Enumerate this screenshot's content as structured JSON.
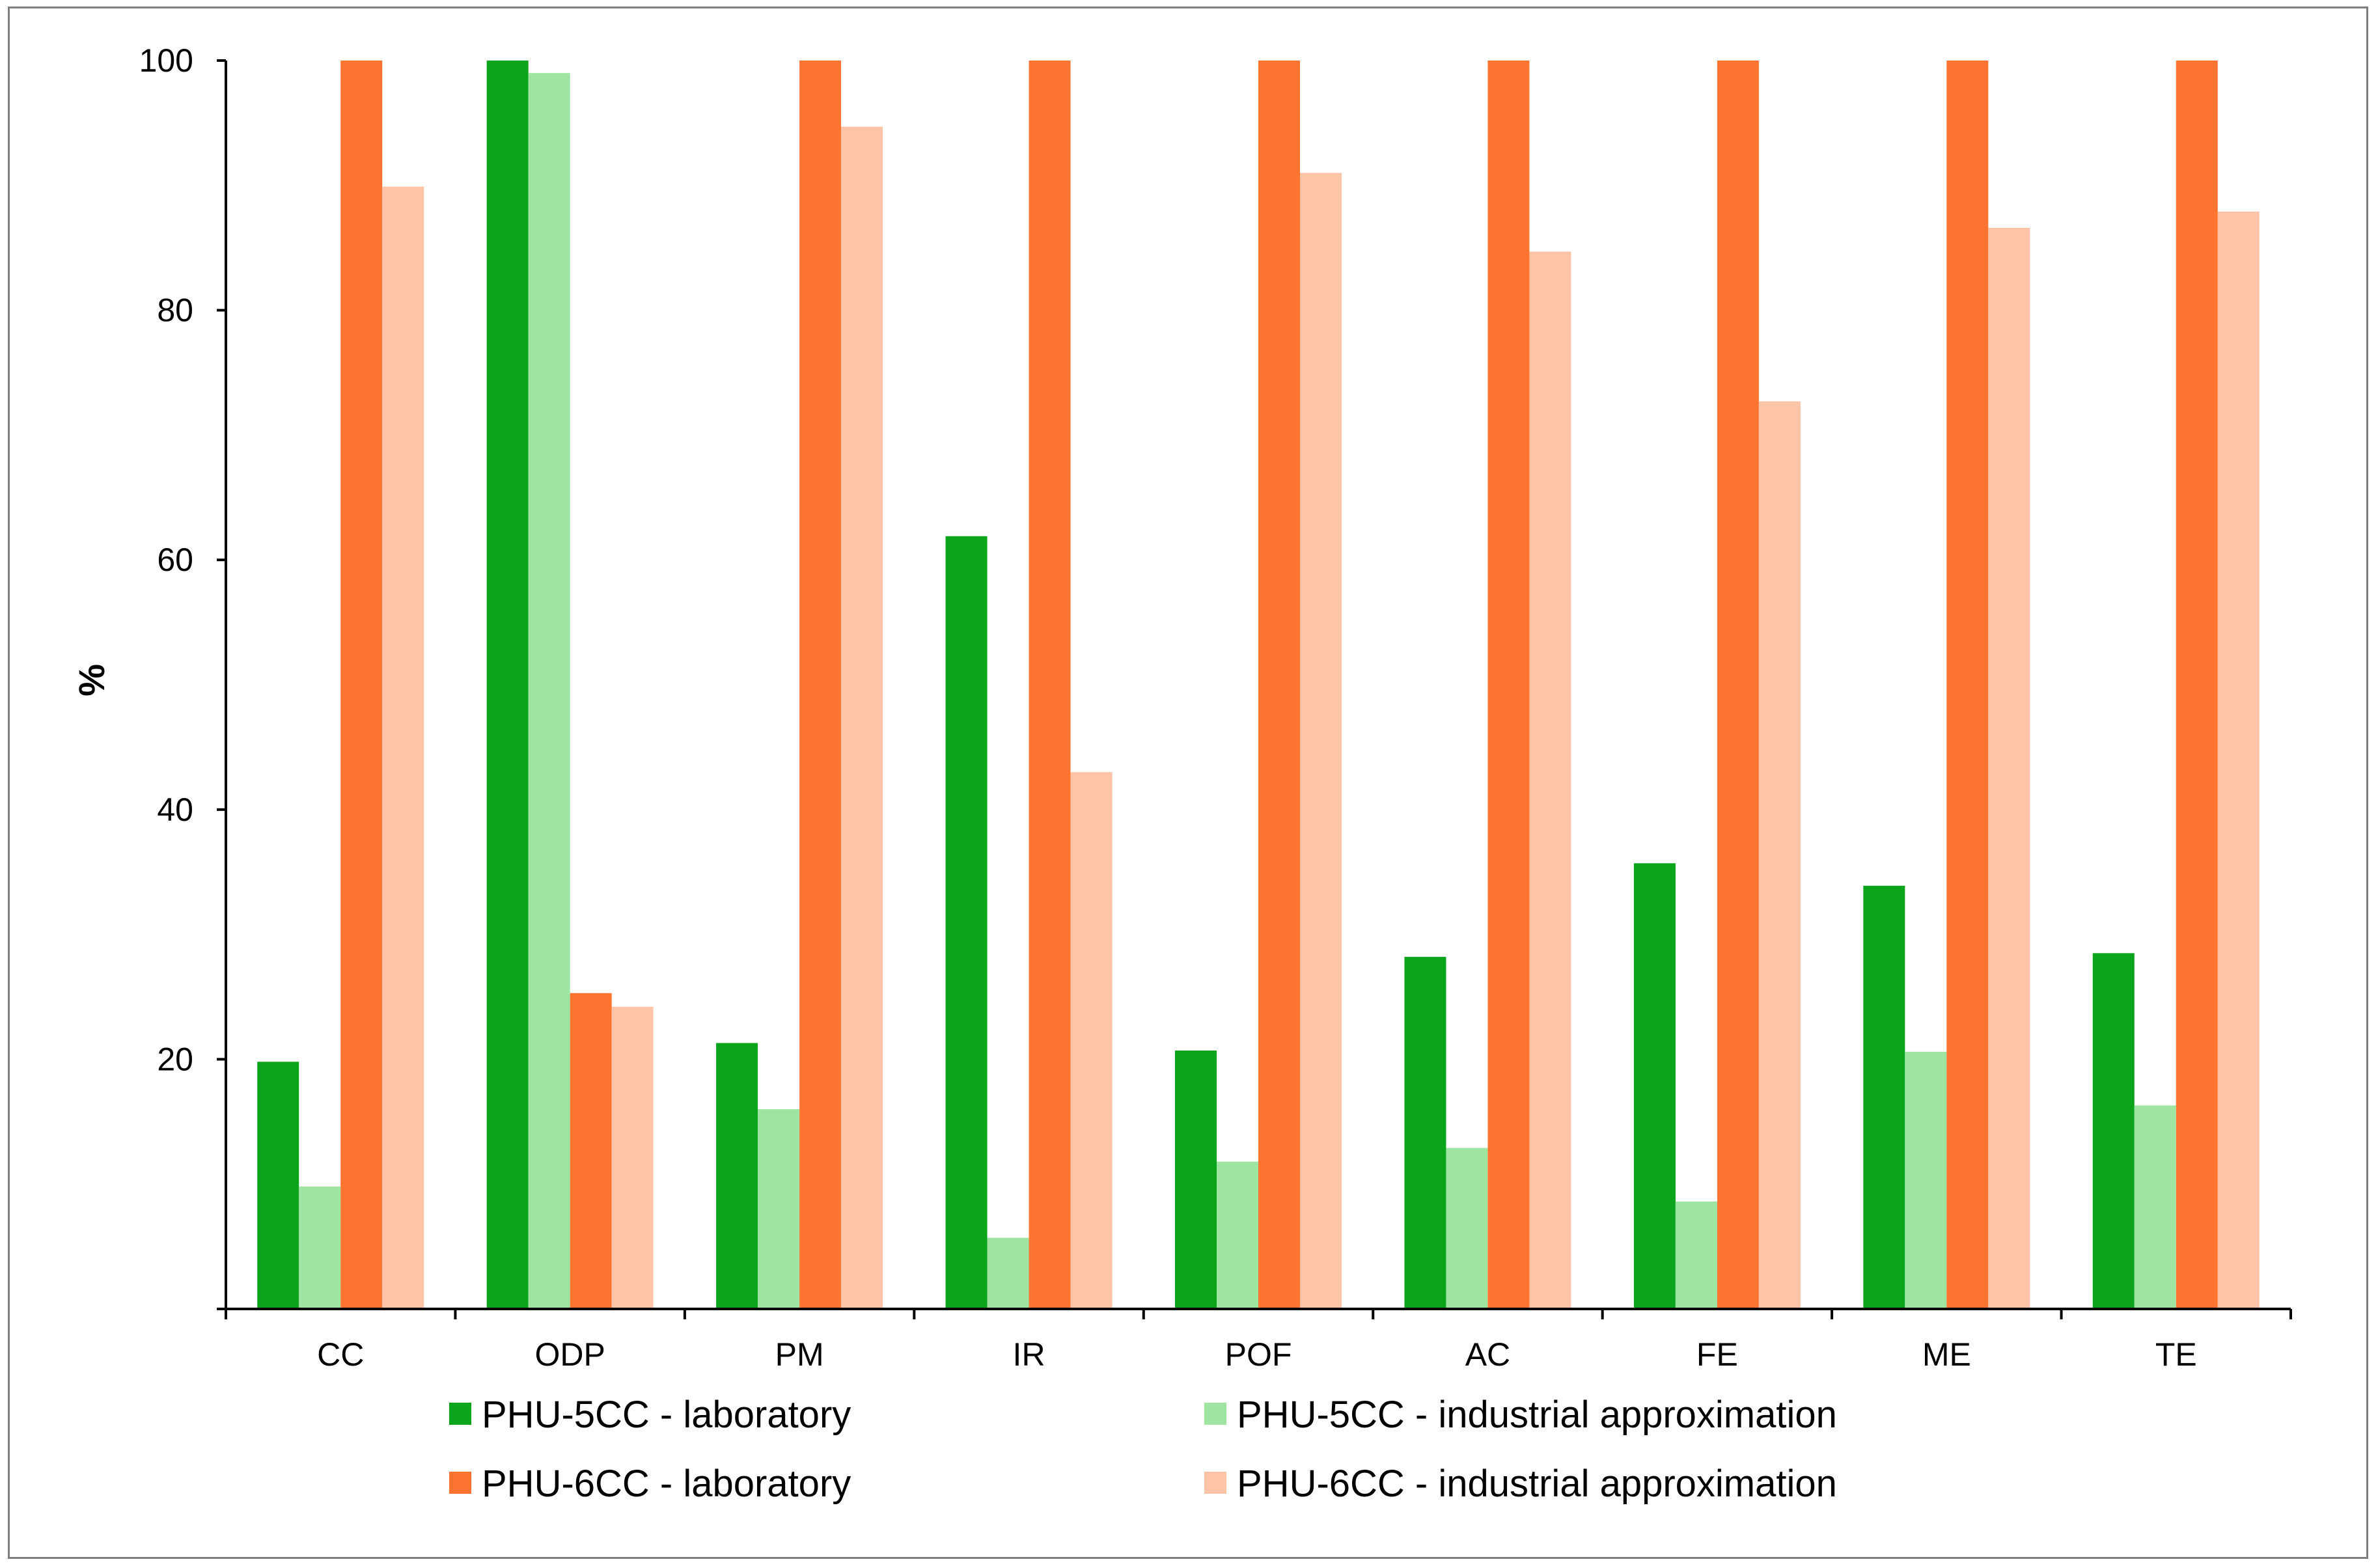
{
  "chart_data": {
    "type": "bar",
    "title": "",
    "xlabel": "",
    "ylabel": "%",
    "ylim": [
      0,
      100
    ],
    "yticks": [
      "20",
      "40",
      "60",
      "80",
      "100"
    ],
    "grid": false,
    "legend_position": "bottom",
    "categories": [
      "CC",
      "ODP",
      "PM",
      "IR",
      "POF",
      "AC",
      "FE",
      "ME",
      "TE"
    ],
    "series": [
      {
        "name": "PHU-5CC - laboratory",
        "color": "#0aa51a",
        "values": [
          19.8,
          100,
          21.3,
          61.9,
          20.7,
          28.2,
          35.7,
          33.9,
          28.5
        ]
      },
      {
        "name": "PHU-5CC - industrial approximation",
        "color": "#9de5a0",
        "values": [
          9.8,
          99.0,
          16.0,
          5.7,
          11.8,
          12.9,
          8.6,
          20.6,
          16.3
        ]
      },
      {
        "name": "PHU-6CC - laboratory",
        "color": "#ff7430",
        "values": [
          100,
          25.3,
          100,
          100,
          100,
          100,
          100,
          100,
          100
        ]
      },
      {
        "name": "PHU-6CC - industrial approximation",
        "color": "#ffc4a8",
        "values": [
          89.9,
          24.2,
          94.7,
          43.0,
          91.0,
          84.7,
          72.7,
          86.6,
          87.9
        ]
      }
    ]
  }
}
